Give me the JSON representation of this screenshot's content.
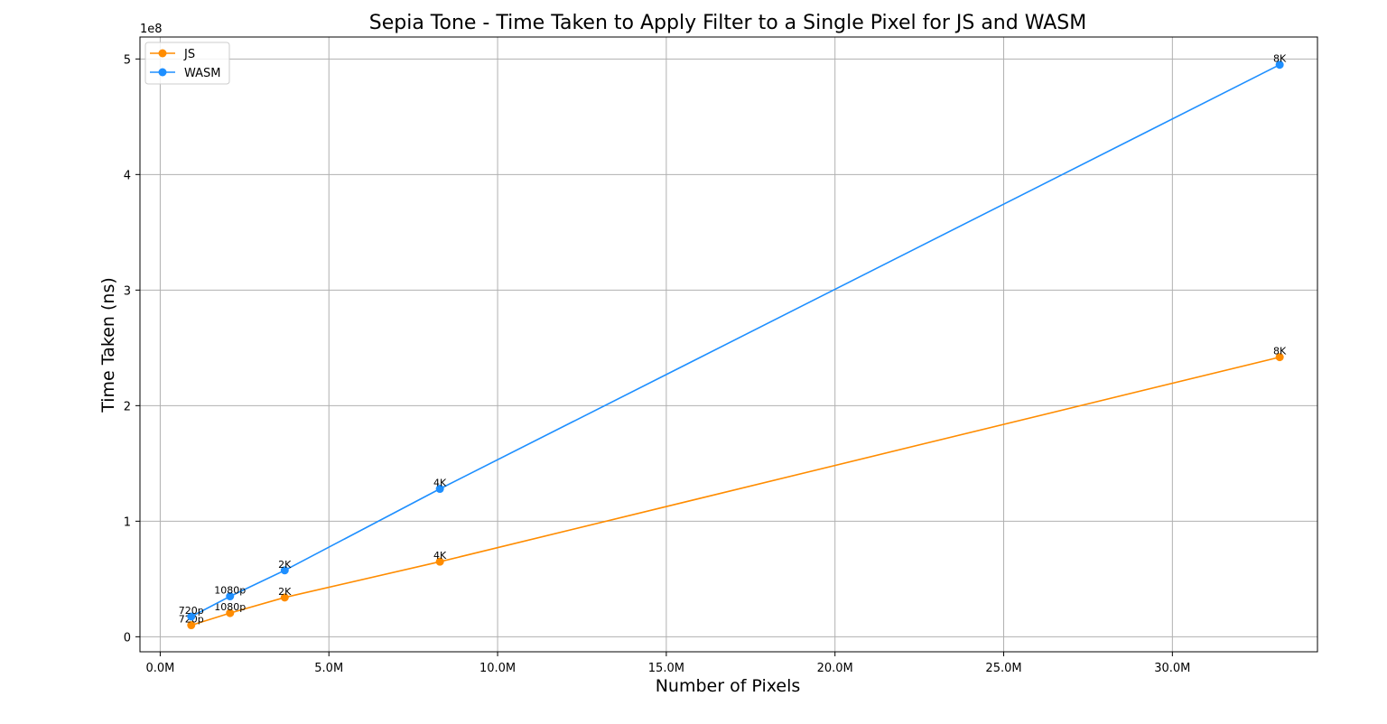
{
  "chart_data": {
    "type": "line",
    "title": "Sepia Tone - Time Taken to Apply Filter to a Single Pixel for JS and WASM",
    "xlabel": "Number of Pixels",
    "ylabel": "Time Taken (ns)",
    "y_offset_text": "1e8",
    "xlim": [
      -0.6,
      34.3
    ],
    "ylim": [
      -0.13,
      5.19
    ],
    "x_unit": "M pixels",
    "y_unit": "1e8 ns",
    "x_ticks": [
      0,
      5,
      10,
      15,
      20,
      25,
      30
    ],
    "x_tick_labels": [
      "0.0M",
      "5.0M",
      "10.0M",
      "15.0M",
      "20.0M",
      "25.0M",
      "30.0M"
    ],
    "y_ticks": [
      0,
      1,
      2,
      3,
      4,
      5
    ],
    "y_tick_labels": [
      "0",
      "1",
      "2",
      "3",
      "4",
      "5"
    ],
    "grid": true,
    "legend_position": "top-left",
    "series": [
      {
        "name": "JS",
        "color": "#ff8c00",
        "points": [
          {
            "x": 0.92,
            "y": 0.1,
            "label": "720p"
          },
          {
            "x": 2.07,
            "y": 0.205,
            "label": "1080p"
          },
          {
            "x": 3.69,
            "y": 0.34,
            "label": "2K"
          },
          {
            "x": 8.29,
            "y": 0.65,
            "label": "4K"
          },
          {
            "x": 33.18,
            "y": 2.42,
            "label": "8K"
          }
        ]
      },
      {
        "name": "WASM",
        "color": "#1e8fff",
        "points": [
          {
            "x": 0.92,
            "y": 0.175,
            "label": "720p"
          },
          {
            "x": 2.07,
            "y": 0.35,
            "label": "1080p"
          },
          {
            "x": 3.69,
            "y": 0.575,
            "label": "2K"
          },
          {
            "x": 8.29,
            "y": 1.28,
            "label": "4K"
          },
          {
            "x": 33.18,
            "y": 4.95,
            "label": "8K"
          }
        ]
      }
    ]
  }
}
